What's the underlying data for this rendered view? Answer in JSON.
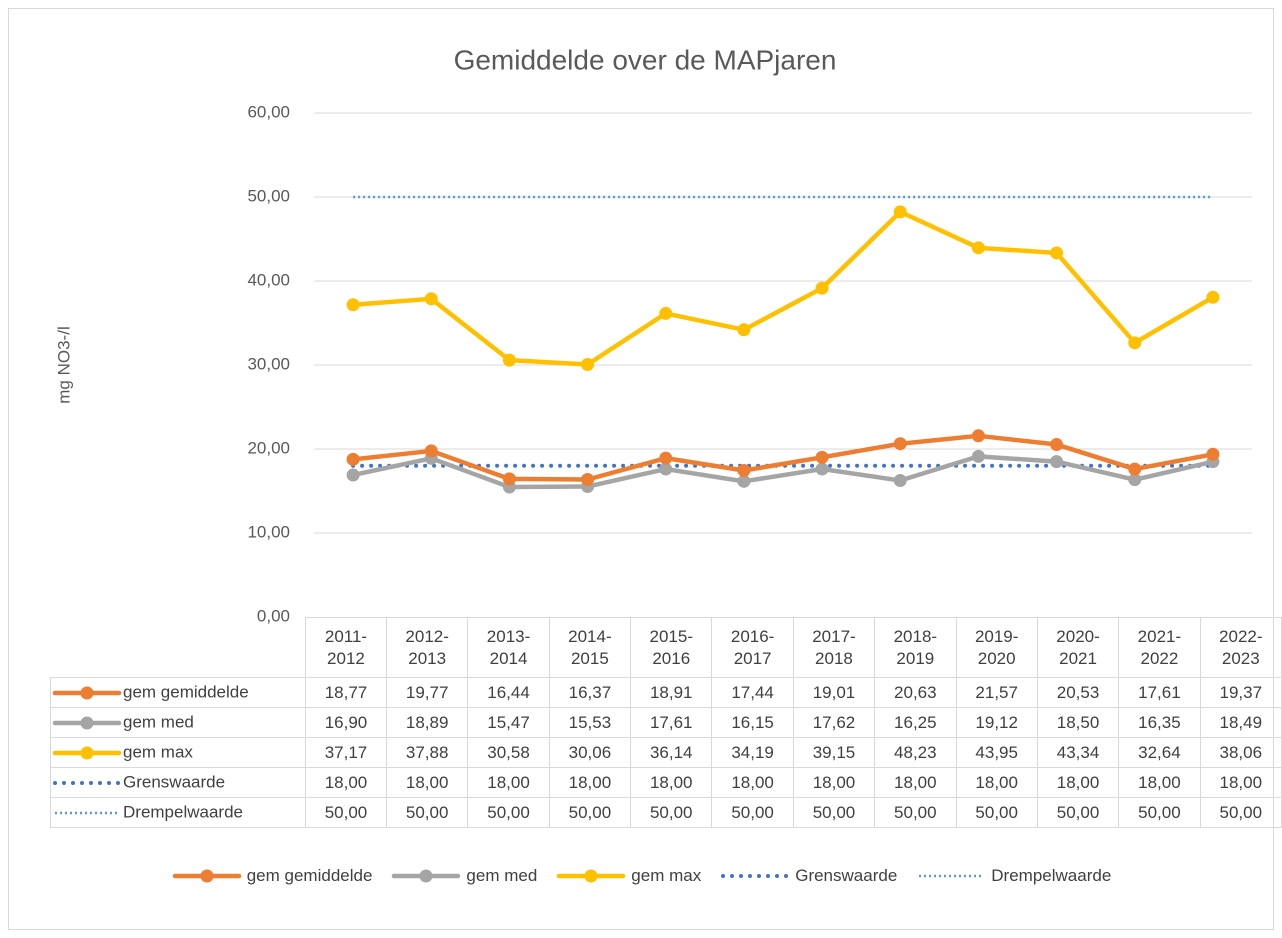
{
  "chart_data": {
    "type": "line",
    "title": "Gemiddelde over de MAPjaren",
    "y_label": "mg NO3-/l",
    "categories": [
      "2011-2012",
      "2012-2013",
      "2013-2014",
      "2014-2015",
      "2015-2016",
      "2016-2017",
      "2017-2018",
      "2018-2019",
      "2019-2020",
      "2020-2021",
      "2021-2022",
      "2022-2023"
    ],
    "ylim": [
      0,
      60
    ],
    "yticks": [
      {
        "value": 0,
        "label": "0,00"
      },
      {
        "value": 10,
        "label": "10,00"
      },
      {
        "value": 20,
        "label": "20,00"
      },
      {
        "value": 30,
        "label": "30,00"
      },
      {
        "value": 40,
        "label": "40,00"
      },
      {
        "value": 50,
        "label": "50,00"
      },
      {
        "value": 60,
        "label": "60,00"
      }
    ],
    "grid": true,
    "legend": "bottom",
    "series": [
      {
        "name": "gem gemiddelde",
        "color": "#ED7D31",
        "line_style": "solid",
        "marker": true,
        "values": [
          18.77,
          19.77,
          16.44,
          16.37,
          18.91,
          17.44,
          19.01,
          20.63,
          21.57,
          20.53,
          17.61,
          19.37
        ],
        "value_labels": [
          "18,77",
          "19,77",
          "16,44",
          "16,37",
          "18,91",
          "17,44",
          "19,01",
          "20,63",
          "21,57",
          "20,53",
          "17,61",
          "19,37"
        ]
      },
      {
        "name": "gem med",
        "color": "#A5A5A5",
        "line_style": "solid",
        "marker": true,
        "values": [
          16.9,
          18.89,
          15.47,
          15.53,
          17.61,
          16.15,
          17.62,
          16.25,
          19.12,
          18.5,
          16.35,
          18.49
        ],
        "value_labels": [
          "16,90",
          "18,89",
          "15,47",
          "15,53",
          "17,61",
          "16,15",
          "17,62",
          "16,25",
          "19,12",
          "18,50",
          "16,35",
          "18,49"
        ]
      },
      {
        "name": "gem max",
        "color": "#FFC000",
        "line_style": "solid",
        "marker": true,
        "values": [
          37.17,
          37.88,
          30.58,
          30.06,
          36.14,
          34.19,
          39.15,
          48.23,
          43.95,
          43.34,
          32.64,
          38.06
        ],
        "value_labels": [
          "37,17",
          "37,88",
          "30,58",
          "30,06",
          "36,14",
          "34,19",
          "39,15",
          "48,23",
          "43,95",
          "43,34",
          "32,64",
          "38,06"
        ]
      },
      {
        "name": "Grenswaarde",
        "color": "#4472C4",
        "line_style": "round-dot",
        "marker": false,
        "values": [
          18,
          18,
          18,
          18,
          18,
          18,
          18,
          18,
          18,
          18,
          18,
          18
        ],
        "value_labels": [
          "18,00",
          "18,00",
          "18,00",
          "18,00",
          "18,00",
          "18,00",
          "18,00",
          "18,00",
          "18,00",
          "18,00",
          "18,00",
          "18,00"
        ]
      },
      {
        "name": "Drempelwaarde",
        "color": "#5B9BD5",
        "line_style": "square-dot",
        "marker": false,
        "values": [
          50,
          50,
          50,
          50,
          50,
          50,
          50,
          50,
          50,
          50,
          50,
          50
        ],
        "value_labels": [
          "50,00",
          "50,00",
          "50,00",
          "50,00",
          "50,00",
          "50,00",
          "50,00",
          "50,00",
          "50,00",
          "50,00",
          "50,00",
          "50,00"
        ]
      }
    ]
  }
}
